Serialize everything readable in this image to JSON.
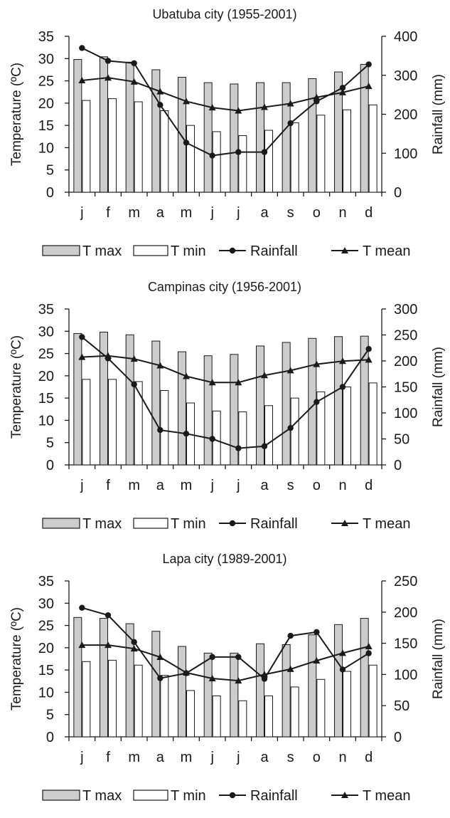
{
  "legend_labels": {
    "tmax": "T max",
    "tmin": "T min",
    "rainfall": "Rainfall",
    "tmean": "T mean"
  },
  "colors": {
    "tmax_fill": "#cccccc",
    "tmin_fill": "#ffffff",
    "stroke": "#1a1a1a"
  },
  "chart_data": [
    {
      "type": "bar",
      "title": "Ubatuba city (1955-2001)",
      "ylabel": "Temperature (ºC)",
      "y2label": "Rainfall (mm)",
      "categories": [
        "j",
        "f",
        "m",
        "a",
        "m",
        "j",
        "j",
        "a",
        "s",
        "o",
        "n",
        "d"
      ],
      "ylim": [
        0,
        35
      ],
      "yticks": [
        0,
        5,
        10,
        15,
        20,
        25,
        30,
        35
      ],
      "y2lim": [
        0,
        400
      ],
      "y2ticks": [
        0,
        100,
        200,
        300,
        400
      ],
      "legend_position": "bottom",
      "series": [
        {
          "name": "T max",
          "kind": "bar",
          "axis": "left",
          "values": [
            29.8,
            30.4,
            29.2,
            27.5,
            25.8,
            24.6,
            24.3,
            24.6,
            24.6,
            25.5,
            27.0,
            28.7
          ]
        },
        {
          "name": "T min",
          "kind": "bar",
          "axis": "left",
          "values": [
            20.6,
            21.0,
            20.3,
            18.3,
            15.0,
            13.6,
            12.7,
            13.9,
            15.6,
            17.3,
            18.5,
            19.6
          ]
        },
        {
          "name": "Rainfall",
          "kind": "line",
          "marker": "circle",
          "axis": "right",
          "values": [
            370,
            337,
            331,
            224,
            127,
            94,
            103,
            103,
            177,
            233,
            268,
            328
          ]
        },
        {
          "name": "T mean",
          "kind": "line",
          "marker": "triangle",
          "axis": "left",
          "values": [
            25.1,
            25.7,
            24.8,
            22.6,
            20.4,
            19.0,
            18.3,
            19.1,
            19.9,
            21.3,
            22.4,
            23.8
          ]
        }
      ]
    },
    {
      "type": "bar",
      "title": "Campinas city (1956-2001)",
      "ylabel": "Temperature (ºC)",
      "y2label": "Rainfall (mm)",
      "categories": [
        "j",
        "f",
        "m",
        "a",
        "m",
        "j",
        "j",
        "a",
        "s",
        "o",
        "n",
        "d"
      ],
      "ylim": [
        0,
        35
      ],
      "yticks": [
        0,
        5,
        10,
        15,
        20,
        25,
        30,
        35
      ],
      "y2lim": [
        0,
        300
      ],
      "y2ticks": [
        0,
        50,
        100,
        150,
        200,
        250,
        300
      ],
      "legend_position": "bottom",
      "series": [
        {
          "name": "T max",
          "kind": "bar",
          "axis": "left",
          "values": [
            29.5,
            29.8,
            29.2,
            27.8,
            25.4,
            24.5,
            24.8,
            26.7,
            27.5,
            28.4,
            28.8,
            28.9
          ]
        },
        {
          "name": "T min",
          "kind": "bar",
          "axis": "left",
          "values": [
            19.2,
            19.2,
            18.7,
            16.7,
            13.9,
            12.1,
            11.9,
            13.3,
            15.0,
            16.4,
            17.5,
            18.4
          ]
        },
        {
          "name": "Rainfall",
          "kind": "line",
          "marker": "circle",
          "axis": "right",
          "values": [
            246,
            205,
            155,
            67,
            60,
            50,
            32,
            36,
            71,
            121,
            150,
            223
          ]
        },
        {
          "name": "T mean",
          "kind": "line",
          "marker": "triangle",
          "axis": "left",
          "values": [
            24.2,
            24.5,
            23.8,
            22.3,
            19.9,
            18.5,
            18.5,
            20.1,
            21.2,
            22.6,
            23.3,
            23.6
          ]
        }
      ]
    },
    {
      "type": "bar",
      "title": "Lapa city (1989-2001)",
      "ylabel": "Temperature (ºC)",
      "y2label": "Rainfall (mm)",
      "categories": [
        "j",
        "f",
        "m",
        "a",
        "m",
        "j",
        "j",
        "a",
        "s",
        "o",
        "n",
        "d"
      ],
      "ylim": [
        0,
        35
      ],
      "yticks": [
        0,
        5,
        10,
        15,
        20,
        25,
        30,
        35
      ],
      "y2lim": [
        0,
        250
      ],
      "y2ticks": [
        0,
        50,
        100,
        150,
        200,
        250
      ],
      "legend_position": "bottom",
      "series": [
        {
          "name": "T max",
          "kind": "bar",
          "axis": "left",
          "values": [
            26.8,
            26.6,
            25.4,
            23.7,
            20.3,
            18.8,
            18.8,
            20.9,
            20.7,
            22.9,
            25.2,
            26.6
          ]
        },
        {
          "name": "T min",
          "kind": "bar",
          "axis": "left",
          "values": [
            16.9,
            17.2,
            16.1,
            13.8,
            10.4,
            9.2,
            8.1,
            9.2,
            11.2,
            12.9,
            14.7,
            16.1
          ]
        },
        {
          "name": "Rainfall",
          "kind": "line",
          "marker": "circle",
          "axis": "right",
          "values": [
            207,
            195,
            152,
            94,
            102,
            128,
            128,
            93,
            162,
            168,
            108,
            134
          ]
        },
        {
          "name": "T mean",
          "kind": "line",
          "marker": "triangle",
          "axis": "left",
          "values": [
            20.6,
            20.6,
            19.8,
            17.9,
            14.4,
            13.1,
            12.6,
            14.0,
            15.2,
            17.1,
            18.8,
            20.3
          ]
        }
      ]
    }
  ]
}
